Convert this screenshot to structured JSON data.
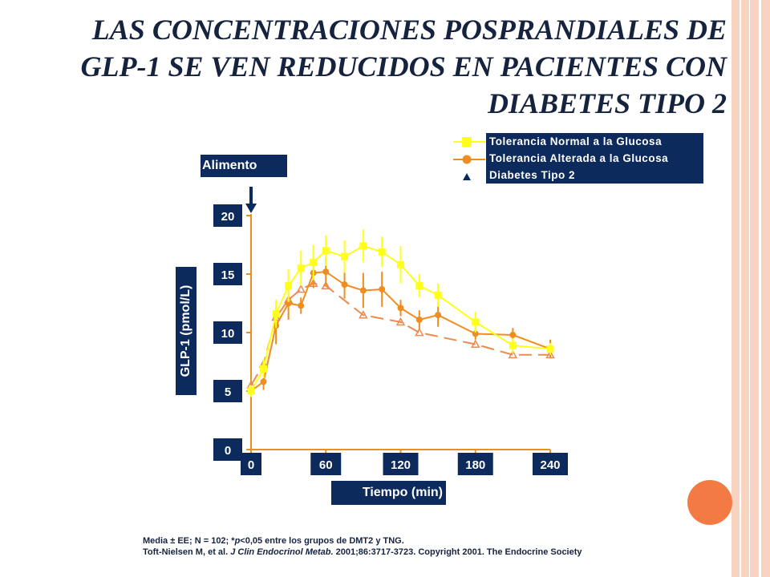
{
  "title": {
    "line1": "Las concentraciones posprandiales de",
    "line2": "GLP-1 se ven reducidos en pacientes con",
    "line3": "Diabetes Tipo 2"
  },
  "colors": {
    "ntg": "#ffff1a",
    "igt": "#ef8e1e",
    "t2d": "#ed8a4e",
    "axis": "#ef8e1e",
    "label_bg": "#0d2a5c",
    "title": "#16233f"
  },
  "chart_data": {
    "type": "line",
    "title": "",
    "xlabel": "Tiempo (min)",
    "ylabel": "GLP-1 (pmol/L)",
    "xlim": [
      0,
      240
    ],
    "ylim": [
      0,
      20
    ],
    "x_ticks": [
      "0",
      "60",
      "120",
      "180",
      "240"
    ],
    "y_ticks": [
      "0",
      "5",
      "10",
      "15",
      "20"
    ],
    "annotation": "Alimento",
    "series": [
      {
        "name": "Tolerancia Normal a la Glucosa",
        "marker": "square",
        "x": [
          0,
          10,
          20,
          30,
          40,
          50,
          60,
          75,
          90,
          105,
          120,
          135,
          150,
          180,
          210,
          240
        ],
        "y": [
          5.0,
          6.9,
          11.6,
          14.0,
          15.5,
          16.0,
          17.0,
          16.5,
          17.4,
          16.9,
          15.8,
          14.0,
          13.2,
          10.9,
          8.9,
          8.6
        ],
        "err": [
          0.5,
          0.8,
          1.2,
          1.4,
          1.5,
          1.5,
          1.3,
          1.4,
          1.4,
          1.3,
          1.6,
          1.0,
          1.0,
          0.9,
          0.6,
          0.5
        ]
      },
      {
        "name": "Tolerancia Alterada a la Glucosa",
        "marker": "circle",
        "x": [
          0,
          10,
          20,
          30,
          40,
          50,
          60,
          75,
          90,
          105,
          120,
          135,
          150,
          180,
          210,
          240
        ],
        "y": [
          5.0,
          5.8,
          10.6,
          12.5,
          12.3,
          15.1,
          15.2,
          14.1,
          13.6,
          13.7,
          12.1,
          11.1,
          11.5,
          9.9,
          9.8,
          8.6
        ],
        "err": [
          0.4,
          0.7,
          1.6,
          1.4,
          0.7,
          1.3,
          1.2,
          1.2,
          1.5,
          1.5,
          0.7,
          0.8,
          1.0,
          0.5,
          0.6,
          0.8
        ]
      },
      {
        "name": "Diabetes Tipo 2",
        "marker": "triangle",
        "x": [
          0,
          10,
          20,
          30,
          40,
          50,
          60,
          90,
          120,
          135,
          180,
          210,
          240
        ],
        "y": [
          5.5,
          7.3,
          11.3,
          12.8,
          13.7,
          14.2,
          14.0,
          11.5,
          10.9,
          10.0,
          9.0,
          8.1,
          8.1
        ],
        "err": []
      }
    ],
    "legend_position": "top-right"
  },
  "footnote": {
    "line1_prefix": "Media ± EE; N = 102; *",
    "line1_p": "p",
    "line1_suffix": "<0,05 entre los grupos de DMT2 y TNG.",
    "line2_prefix": "Toft-Nielsen M, et al. ",
    "line2_journal": "J Clin Endocrinol Metab.",
    "line2_suffix": " 2001;86:3717-3723. Copyright 2001. The Endocrine Society"
  }
}
